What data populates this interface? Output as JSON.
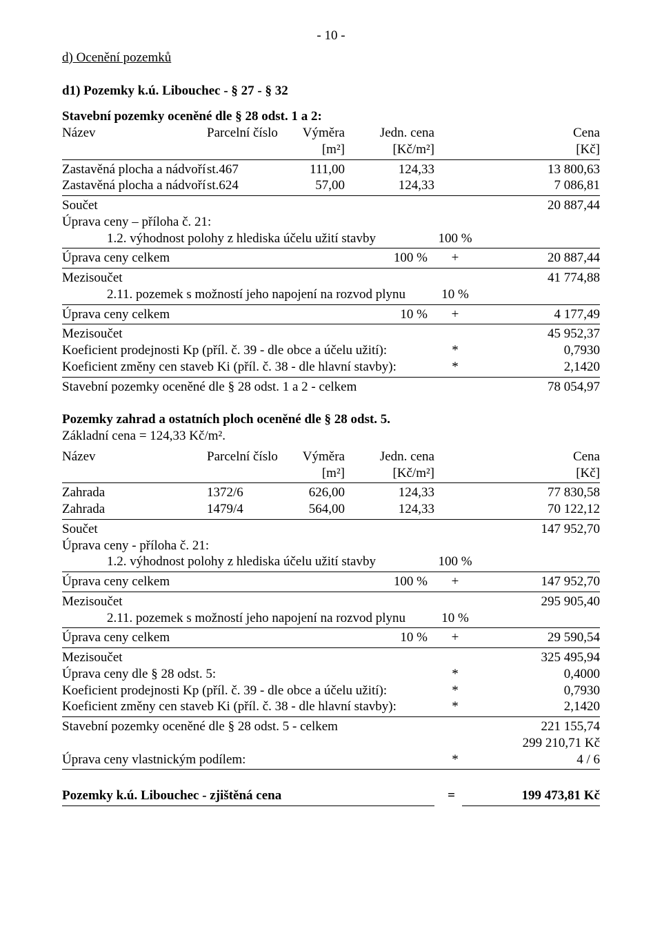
{
  "page_number": "- 10 -",
  "section_d": {
    "title": "d) Ocenění pozemků"
  },
  "d1": {
    "title": "d1) Pozemky k.ú. Libouchec  - § 27 - § 32",
    "stavebni_heading": "Stavební pozemky oceněné dle § 28 odst. 1 a 2:",
    "header": {
      "name": "Název",
      "parcel": "Parcelní číslo",
      "vymera": "Výměra",
      "vymera_unit": "[m²]",
      "jedn": "Jedn. cena",
      "jedn_unit": "[Kč/m²]",
      "cena": "Cena",
      "cena_unit": "[Kč]"
    },
    "rows": [
      {
        "name": "Zastavěná plocha a nádvoří",
        "parcel": "st.467",
        "vymera": "111,00",
        "jedn": "124,33",
        "cena": "13 800,63"
      },
      {
        "name": "Zastavěná plocha a nádvoří",
        "parcel": "st.624",
        "vymera": "57,00",
        "jedn": "124,33",
        "cena": "7 086,81"
      }
    ],
    "soucet": {
      "label": "Součet",
      "value": "20 887,44"
    },
    "uprava_priloha": "Úprava ceny – příloha č. 21:",
    "vyhodnost": {
      "label": "1.2. výhodnost polohy z hlediska účelu užití stavby",
      "pct": "100 %"
    },
    "uprava_celkem1": {
      "label": "Úprava ceny celkem",
      "pct": "100 %",
      "plus": "+",
      "value": "20 887,44"
    },
    "mezisoucet1": {
      "label": "Mezisoučet",
      "value": "41 774,88"
    },
    "plyn": {
      "label": "2.11. pozemek s možností jeho napojení na rozvod plynu",
      "pct": "10 %"
    },
    "uprava_celkem2": {
      "label": "Úprava ceny celkem",
      "pct": "10 %",
      "plus": "+",
      "value": "4 177,49"
    },
    "mezisoucet2": {
      "label": "Mezisoučet",
      "value": "45 952,37"
    },
    "koef_kp": {
      "label": "Koeficient prodejnosti Kp (příl. č. 39 - dle obce a účelu užití):",
      "star": "*",
      "value": "0,7930"
    },
    "koef_ki": {
      "label": "Koeficient změny cen staveb Ki (příl. č. 38 - dle hlavní stavby):",
      "star": "*",
      "value": "2,1420"
    },
    "stavebni_celkem": {
      "label": "Stavební pozemky oceněné dle § 28 odst. 1 a 2 - celkem",
      "value": "78 054,97"
    }
  },
  "zahrady": {
    "heading": "Pozemky zahrad a ostatních ploch oceněné dle § 28 odst. 5.",
    "zc": "Základní cena = 124,33 Kč/m².",
    "header": {
      "name": "Název",
      "parcel": "Parcelní číslo",
      "vymera": "Výměra",
      "vymera_unit": "[m²]",
      "jedn": "Jedn. cena",
      "jedn_unit": "[Kč/m²]",
      "cena": "Cena",
      "cena_unit": "[Kč]"
    },
    "rows": [
      {
        "name": "Zahrada",
        "parcel": "1372/6",
        "vymera": "626,00",
        "jedn": "124,33",
        "cena": "77 830,58"
      },
      {
        "name": "Zahrada",
        "parcel": "1479/4",
        "vymera": "564,00",
        "jedn": "124,33",
        "cena": "70 122,12"
      }
    ],
    "soucet": {
      "label": "Součet",
      "value": "147 952,70"
    },
    "uprava_priloha": "Úprava ceny - příloha č. 21:",
    "vyhodnost": {
      "label": "1.2. výhodnost polohy z hlediska účelu užití stavby",
      "pct": "100 %"
    },
    "uprava_celkem1": {
      "label": "Úprava ceny celkem",
      "pct": "100 %",
      "plus": "+",
      "value": "147 952,70"
    },
    "mezisoucet1": {
      "label": "Mezisoučet",
      "value": "295 905,40"
    },
    "plyn": {
      "label": "2.11. pozemek s možností jeho napojení na rozvod plynu",
      "pct": "10 %"
    },
    "uprava_celkem2": {
      "label": "Úprava ceny celkem",
      "pct": "10 %",
      "plus": "+",
      "value": "29 590,54"
    },
    "mezisoucet2": {
      "label": "Mezisoučet",
      "value": "325 495,94"
    },
    "uprava_odst5": {
      "label": "Úprava ceny dle § 28 odst. 5:",
      "star": "*",
      "value": "0,4000"
    },
    "koef_kp": {
      "label": "Koeficient prodejnosti Kp (příl. č. 39 - dle obce a účelu užití):",
      "star": "*",
      "value": "0,7930"
    },
    "koef_ki": {
      "label": "Koeficient změny cen staveb Ki (příl. č. 38 - dle hlavní stavby):",
      "star": "*",
      "value": "2,1420"
    },
    "stavebni_celkem": {
      "label": "Stavební pozemky oceněné dle § 28 odst. 5 - celkem",
      "value": "221 155,74"
    },
    "sum_kc": "299 210,71 Kč",
    "vlastnicky": {
      "label": "Úprava ceny vlastnickým podílem:",
      "star": "*",
      "value": "4 / 6"
    }
  },
  "final": {
    "label": "Pozemky k.ú. Libouchec - zjištěná cena",
    "eq": "=",
    "value": "199 473,81 Kč"
  }
}
